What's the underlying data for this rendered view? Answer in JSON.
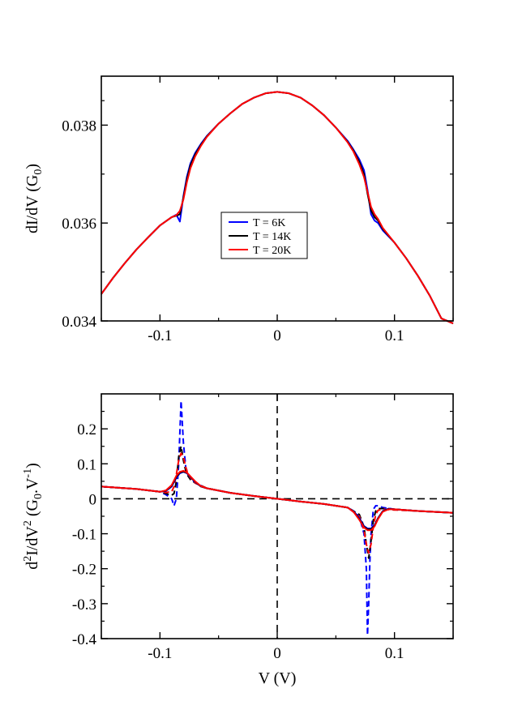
{
  "chart_data": [
    {
      "type": "line",
      "panel": "top",
      "title": "",
      "xlabel": "",
      "ylabel": "dI/dV (G",
      "ylabel_sub": "0",
      "ylabel_close": ")",
      "xlim": [
        -0.15,
        0.15
      ],
      "ylim": [
        0.034,
        0.039
      ],
      "xticks": [
        -0.1,
        0,
        0.1
      ],
      "xtick_labels": [
        "-0.1",
        "0",
        "0.1"
      ],
      "yticks": [
        0.034,
        0.036,
        0.038
      ],
      "ytick_labels": [
        "0.034",
        "0.036",
        "0.038"
      ],
      "grid": false,
      "legend_position": "center",
      "series": [
        {
          "name": "T = 6K",
          "color": "#0000ff",
          "x": [
            -0.15,
            -0.14,
            -0.13,
            -0.12,
            -0.11,
            -0.1,
            -0.09,
            -0.086,
            -0.083,
            -0.08,
            -0.077,
            -0.074,
            -0.07,
            -0.065,
            -0.06,
            -0.05,
            -0.04,
            -0.03,
            -0.02,
            -0.01,
            0,
            0.01,
            0.02,
            0.03,
            0.04,
            0.05,
            0.06,
            0.065,
            0.07,
            0.074,
            0.077,
            0.08,
            0.083,
            0.086,
            0.09,
            0.1,
            0.11,
            0.12,
            0.13,
            0.14,
            0.15
          ],
          "y": [
            0.03455,
            0.03488,
            0.03518,
            0.03546,
            0.03571,
            0.03595,
            0.03612,
            0.03617,
            0.03603,
            0.03655,
            0.03695,
            0.03722,
            0.03743,
            0.03762,
            0.03778,
            0.03803,
            0.03824,
            0.03843,
            0.03856,
            0.03865,
            0.03868,
            0.03865,
            0.03856,
            0.0384,
            0.0382,
            0.03795,
            0.03768,
            0.0375,
            0.0373,
            0.03708,
            0.03668,
            0.03618,
            0.03605,
            0.036,
            0.03585,
            0.0356,
            0.03528,
            0.03492,
            0.03452,
            0.03405,
            0.03395
          ]
        },
        {
          "name": "T = 14K",
          "color": "#000000",
          "x": [
            -0.15,
            -0.14,
            -0.13,
            -0.12,
            -0.11,
            -0.1,
            -0.09,
            -0.086,
            -0.083,
            -0.08,
            -0.077,
            -0.074,
            -0.07,
            -0.065,
            -0.06,
            -0.05,
            -0.04,
            -0.03,
            -0.02,
            -0.01,
            0,
            0.01,
            0.02,
            0.03,
            0.04,
            0.05,
            0.06,
            0.065,
            0.07,
            0.074,
            0.077,
            0.08,
            0.083,
            0.086,
            0.09,
            0.1,
            0.11,
            0.12,
            0.13,
            0.14,
            0.15
          ],
          "y": [
            0.03455,
            0.03488,
            0.03518,
            0.03546,
            0.03571,
            0.03595,
            0.03612,
            0.03615,
            0.03618,
            0.03652,
            0.0369,
            0.03718,
            0.0374,
            0.0376,
            0.03777,
            0.03803,
            0.03824,
            0.03843,
            0.03856,
            0.03865,
            0.03868,
            0.03865,
            0.03856,
            0.0384,
            0.0382,
            0.03795,
            0.03766,
            0.03748,
            0.03725,
            0.037,
            0.0366,
            0.03626,
            0.03612,
            0.03605,
            0.03588,
            0.0356,
            0.03528,
            0.03492,
            0.03452,
            0.03405,
            0.03395
          ]
        },
        {
          "name": "T = 20K",
          "color": "#ff0000",
          "x": [
            -0.15,
            -0.14,
            -0.13,
            -0.12,
            -0.11,
            -0.1,
            -0.09,
            -0.086,
            -0.083,
            -0.08,
            -0.077,
            -0.074,
            -0.07,
            -0.065,
            -0.06,
            -0.05,
            -0.04,
            -0.03,
            -0.02,
            -0.01,
            0,
            0.01,
            0.02,
            0.03,
            0.04,
            0.05,
            0.06,
            0.065,
            0.07,
            0.074,
            0.077,
            0.08,
            0.083,
            0.086,
            0.09,
            0.1,
            0.11,
            0.12,
            0.13,
            0.14,
            0.15
          ],
          "y": [
            0.03455,
            0.03488,
            0.03518,
            0.03546,
            0.03571,
            0.03595,
            0.03612,
            0.03616,
            0.03625,
            0.03648,
            0.03684,
            0.03712,
            0.03736,
            0.03758,
            0.03776,
            0.03803,
            0.03824,
            0.03843,
            0.03856,
            0.03865,
            0.03868,
            0.03865,
            0.03856,
            0.0384,
            0.0382,
            0.03795,
            0.03765,
            0.03746,
            0.0372,
            0.03694,
            0.03664,
            0.03633,
            0.03618,
            0.03608,
            0.0359,
            0.0356,
            0.03528,
            0.03492,
            0.03452,
            0.03405,
            0.03395
          ]
        }
      ]
    },
    {
      "type": "line",
      "panel": "bottom",
      "title": "",
      "xlabel": "V (V)",
      "ylabel": "d2I/dV2 (G0.V-1)",
      "ylabel_parts": [
        "d",
        "2",
        "I/dV",
        "2",
        " (G",
        "0",
        ".V",
        "-1",
        ")"
      ],
      "xlim": [
        -0.15,
        0.15
      ],
      "ylim": [
        -0.4,
        0.3
      ],
      "xticks": [
        -0.1,
        0,
        0.1
      ],
      "xtick_labels": [
        "-0.1",
        "0",
        "0.1"
      ],
      "yticks": [
        -0.4,
        -0.3,
        -0.2,
        -0.1,
        0,
        0.1,
        0.2
      ],
      "ytick_labels": [
        "-0.4",
        "-0.3",
        "-0.2",
        "-0.1",
        "0",
        "0.1",
        "0.2"
      ],
      "grid": false,
      "reference_lines": [
        {
          "orientation": "horizontal",
          "value": 0
        },
        {
          "orientation": "vertical",
          "value": 0
        }
      ],
      "series": [
        {
          "name": "6K (dashed)",
          "color": "#0000ff",
          "dash": true,
          "x": [
            -0.15,
            -0.12,
            -0.1,
            -0.095,
            -0.09,
            -0.088,
            -0.086,
            -0.084,
            -0.082,
            -0.08,
            -0.078,
            -0.076,
            -0.074,
            -0.07,
            -0.06,
            -0.04,
            -0.02,
            0,
            0.02,
            0.04,
            0.06,
            0.07,
            0.074,
            0.076,
            0.077,
            0.078,
            0.079,
            0.08,
            0.082,
            0.084,
            0.086,
            0.09,
            0.1,
            0.12,
            0.15
          ],
          "y": [
            0.035,
            0.028,
            0.02,
            0.012,
            0.0,
            -0.02,
            0.0,
            0.1,
            0.28,
            0.16,
            0.09,
            0.07,
            0.06,
            0.045,
            0.03,
            0.017,
            0.008,
            0.0,
            -0.008,
            -0.015,
            -0.025,
            -0.05,
            -0.1,
            -0.2,
            -0.39,
            -0.3,
            -0.18,
            -0.1,
            -0.03,
            -0.02,
            -0.02,
            -0.025,
            -0.03,
            -0.035,
            -0.04
          ]
        },
        {
          "name": "14K (dashed)",
          "color": "#000000",
          "dash": true,
          "x": [
            -0.15,
            -0.12,
            -0.1,
            -0.095,
            -0.09,
            -0.088,
            -0.086,
            -0.084,
            -0.082,
            -0.08,
            -0.078,
            -0.076,
            -0.074,
            -0.07,
            -0.06,
            -0.04,
            -0.02,
            0,
            0.02,
            0.04,
            0.06,
            0.07,
            0.074,
            0.076,
            0.078,
            0.08,
            0.082,
            0.084,
            0.086,
            0.09,
            0.1,
            0.12,
            0.15
          ],
          "y": [
            0.035,
            0.028,
            0.02,
            0.015,
            0.01,
            0.015,
            0.05,
            0.12,
            0.15,
            0.11,
            0.08,
            0.065,
            0.055,
            0.045,
            0.03,
            0.017,
            0.008,
            0.0,
            -0.008,
            -0.015,
            -0.025,
            -0.045,
            -0.08,
            -0.13,
            -0.17,
            -0.12,
            -0.06,
            -0.035,
            -0.028,
            -0.028,
            -0.03,
            -0.035,
            -0.04
          ]
        },
        {
          "name": "20K (dashed)",
          "color": "#ff0000",
          "dash": true,
          "x": [
            -0.15,
            -0.12,
            -0.1,
            -0.095,
            -0.09,
            -0.088,
            -0.086,
            -0.084,
            -0.082,
            -0.08,
            -0.078,
            -0.076,
            -0.074,
            -0.07,
            -0.06,
            -0.04,
            -0.02,
            0,
            0.02,
            0.04,
            0.06,
            0.07,
            0.074,
            0.076,
            0.078,
            0.08,
            0.082,
            0.084,
            0.086,
            0.09,
            0.1,
            0.12,
            0.15
          ],
          "y": [
            0.035,
            0.028,
            0.02,
            0.018,
            0.02,
            0.035,
            0.07,
            0.11,
            0.13,
            0.12,
            0.09,
            0.07,
            0.06,
            0.045,
            0.03,
            0.017,
            0.008,
            0.0,
            -0.008,
            -0.015,
            -0.025,
            -0.05,
            -0.09,
            -0.13,
            -0.155,
            -0.13,
            -0.08,
            -0.045,
            -0.033,
            -0.03,
            -0.032,
            -0.035,
            -0.04
          ]
        },
        {
          "name": "6K (solid)",
          "color": "#0000ff",
          "dash": false,
          "x": [
            -0.15,
            -0.12,
            -0.1,
            -0.095,
            -0.09,
            -0.086,
            -0.083,
            -0.08,
            -0.077,
            -0.074,
            -0.07,
            -0.065,
            -0.06,
            -0.04,
            -0.02,
            0,
            0.02,
            0.04,
            0.06,
            0.065,
            0.07,
            0.074,
            0.077,
            0.08,
            0.083,
            0.086,
            0.09,
            0.095,
            0.1,
            0.12,
            0.15
          ],
          "y": [
            0.035,
            0.028,
            0.02,
            0.022,
            0.035,
            0.06,
            0.073,
            0.077,
            0.073,
            0.062,
            0.048,
            0.035,
            0.03,
            0.017,
            0.008,
            0.0,
            -0.008,
            -0.015,
            -0.025,
            -0.035,
            -0.055,
            -0.078,
            -0.085,
            -0.085,
            -0.075,
            -0.055,
            -0.035,
            -0.028,
            -0.03,
            -0.035,
            -0.04
          ]
        },
        {
          "name": "14K (solid)",
          "color": "#000000",
          "dash": false,
          "x": [
            -0.15,
            -0.12,
            -0.1,
            -0.095,
            -0.09,
            -0.086,
            -0.083,
            -0.08,
            -0.077,
            -0.074,
            -0.07,
            -0.065,
            -0.06,
            -0.04,
            -0.02,
            0,
            0.02,
            0.04,
            0.06,
            0.065,
            0.07,
            0.074,
            0.077,
            0.08,
            0.083,
            0.086,
            0.09,
            0.095,
            0.1,
            0.12,
            0.15
          ],
          "y": [
            0.035,
            0.028,
            0.02,
            0.023,
            0.037,
            0.063,
            0.075,
            0.078,
            0.074,
            0.063,
            0.049,
            0.035,
            0.03,
            0.017,
            0.008,
            0.0,
            -0.008,
            -0.015,
            -0.025,
            -0.036,
            -0.058,
            -0.08,
            -0.087,
            -0.087,
            -0.077,
            -0.056,
            -0.036,
            -0.029,
            -0.03,
            -0.035,
            -0.04
          ]
        },
        {
          "name": "20K (solid)",
          "color": "#ff0000",
          "dash": false,
          "x": [
            -0.15,
            -0.12,
            -0.1,
            -0.095,
            -0.09,
            -0.086,
            -0.083,
            -0.08,
            -0.077,
            -0.074,
            -0.07,
            -0.065,
            -0.06,
            -0.04,
            -0.02,
            0,
            0.02,
            0.04,
            0.06,
            0.065,
            0.07,
            0.074,
            0.077,
            0.08,
            0.083,
            0.086,
            0.09,
            0.095,
            0.1,
            0.12,
            0.15
          ],
          "y": [
            0.035,
            0.028,
            0.02,
            0.024,
            0.039,
            0.066,
            0.077,
            0.08,
            0.075,
            0.064,
            0.05,
            0.036,
            0.03,
            0.017,
            0.008,
            0.0,
            -0.008,
            -0.015,
            -0.025,
            -0.037,
            -0.06,
            -0.082,
            -0.09,
            -0.09,
            -0.079,
            -0.058,
            -0.037,
            -0.03,
            -0.03,
            -0.035,
            -0.04
          ]
        }
      ]
    }
  ]
}
